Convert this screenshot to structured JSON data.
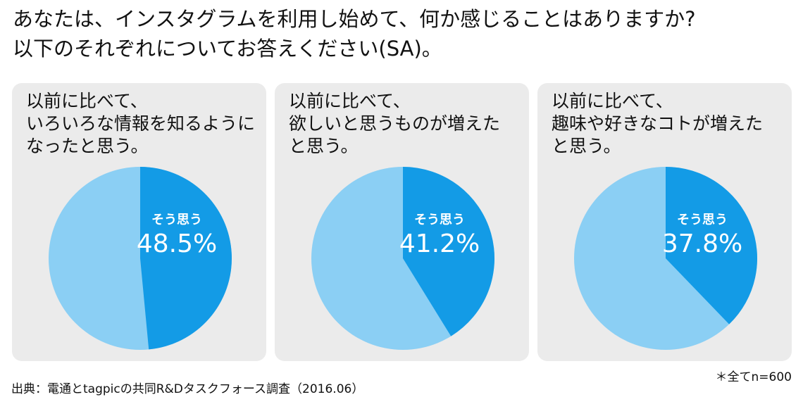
{
  "title_lines": [
    "あなたは、インスタグラムを利用し始めて、何か感じることはありますか?",
    "以下のそれぞれについてお答えください(SA)。"
  ],
  "colors": {
    "yes": "#139be6",
    "other": "#8bcff4",
    "panel": "#ebebeb"
  },
  "chart_data": [
    {
      "type": "pie",
      "title": "以前に比べて、\nいろいろな情報を知るように\nなったと思う。",
      "slice_label": "そう思う",
      "value": 48.5,
      "value_label": "48.5%"
    },
    {
      "type": "pie",
      "title": "以前に比べて、\n欲しいと思うものが増えた\nと思う。",
      "slice_label": "そう思う",
      "value": 41.2,
      "value_label": "41.2%"
    },
    {
      "type": "pie",
      "title": "以前に比べて、\n趣味や好きなコトが増えた\nと思う。",
      "slice_label": "そう思う",
      "value": 37.8,
      "value_label": "37.8%"
    }
  ],
  "note": "＊全てn=600",
  "source": "出典：電通とtagpicの共同R&Dタスクフォース調査（2016.06）"
}
